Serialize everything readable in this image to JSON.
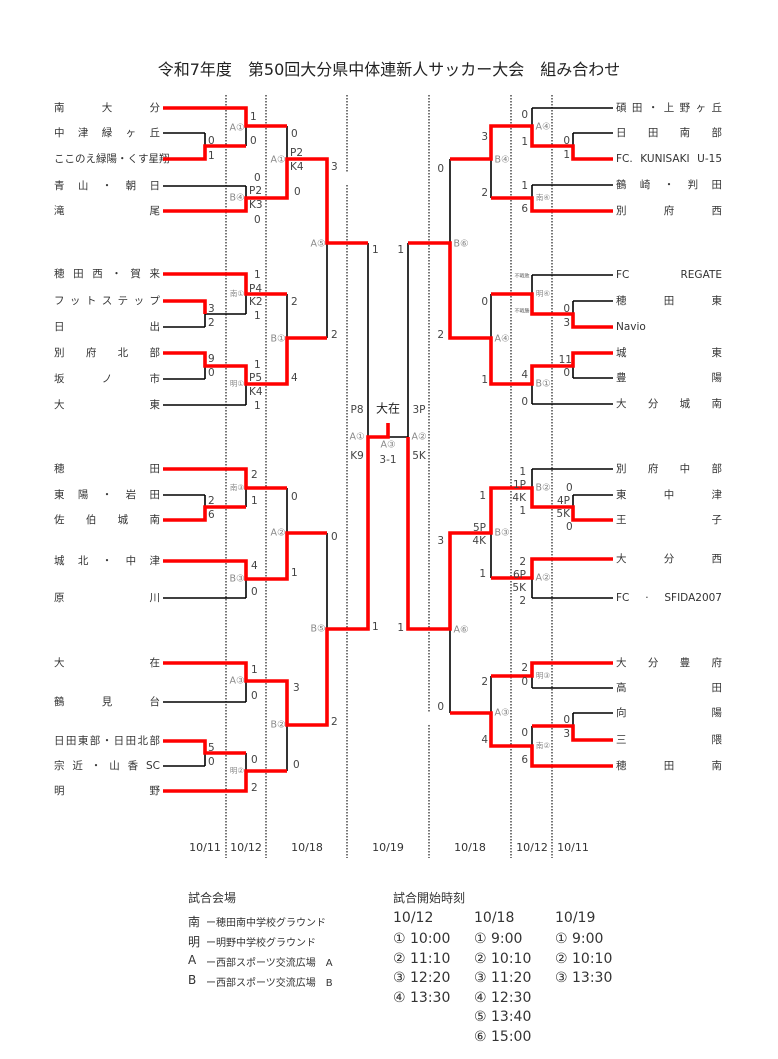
{
  "title": "令和7年度　第50回大分県中体連新人サッカー大会　組み合わせ",
  "left_teams": [
    "南大分",
    "中津緑ヶ丘",
    "ここのえ緑陽・くす星翔",
    "青山・朝日",
    "滝尾",
    "穂田西・賀来",
    "フットステップ",
    "日出",
    "別府北部",
    "坂ノ市",
    "大東",
    "穂田",
    "東陽・岩田",
    "佐伯城南",
    "城北・中津",
    "原川",
    "大在",
    "鶴見台",
    "日田東部・日田北部",
    "宗近・山香SC",
    "明野"
  ],
  "right_teams": [
    "碩田・上野ヶ丘",
    "日田南部",
    "FC. KUNISAKI U-15",
    "鶴崎・判田",
    "別府西",
    "FC REGATE",
    "穂田東",
    "Navio",
    "城東",
    "豊陽",
    "大分城南",
    "別府中部",
    "東中津",
    "王子",
    "大分西",
    "FC · SFIDA2007",
    "大分豊府",
    "高田",
    "向陽",
    "三隈",
    "穂田南"
  ],
  "left_labels": [
    "0",
    "1",
    "A①",
    "1",
    "0",
    "B④",
    "0",
    "P2",
    "K3",
    "0",
    "A①",
    "0",
    "P2",
    "K4",
    "0",
    "A⑤",
    "3",
    "2",
    "南①",
    "1",
    "P4",
    "K2",
    "1",
    "3",
    "2",
    "9",
    "0",
    "明①",
    "1",
    "P5",
    "K4",
    "1",
    "B①",
    "2",
    "4",
    "1",
    "P8",
    "A①",
    "K9",
    "南③",
    "2",
    "1",
    "2",
    "6",
    "B③",
    "4",
    "0",
    "A②",
    "0",
    "1",
    "B⑤",
    "0",
    "2",
    "A③",
    "1",
    "0",
    "5",
    "0",
    "明②",
    "0",
    "2",
    "B②",
    "3",
    "0",
    "1"
  ],
  "right_labels": [
    "0",
    "1",
    "A④",
    "0",
    "1",
    "南④",
    "1",
    "6",
    "B④",
    "3",
    "2",
    "B⑥",
    "0",
    "2",
    "1",
    "3P",
    "A②",
    "5K",
    "明④",
    "不戦敗",
    "不戦勝",
    "0",
    "3",
    "B①",
    "4",
    "0",
    "11",
    "0",
    "A④",
    "0",
    "1",
    "B②",
    "1",
    "1P",
    "4K",
    "1",
    "0",
    "4P",
    "5K",
    "0",
    "A②",
    "2",
    "6P",
    "5K",
    "2",
    "B③",
    "1",
    "5P",
    "4K",
    "1",
    "A⑥",
    "3",
    "0",
    "明③",
    "2",
    "0",
    "0",
    "3",
    "南②",
    "0",
    "6",
    "A③",
    "2",
    "4",
    "1"
  ],
  "final": {
    "champion": "大在",
    "venue": "A③",
    "score": "3-1"
  },
  "dates": [
    "10/11",
    "10/12",
    "10/18",
    "10/19",
    "10/18",
    "10/12",
    "10/11"
  ],
  "venues": {
    "heading": "試合会場",
    "items": [
      {
        "key": "南",
        "name": "ー穂田南中学校グラウンド"
      },
      {
        "key": "明",
        "name": "ー明野中学校グラウンド"
      },
      {
        "key": "A",
        "name": "ー西部スポーツ交流広場　A"
      },
      {
        "key": "B",
        "name": "ー西部スポーツ交流広場　B"
      }
    ]
  },
  "times": {
    "heading": "試合開始時刻",
    "columns": [
      {
        "date": "10/12",
        "slots": [
          "① 10:00",
          "② 11:10",
          "③ 12:20",
          "④ 13:30"
        ]
      },
      {
        "date": "10/18",
        "slots": [
          "① 9:00",
          "② 10:10",
          "③ 11:20",
          "④ 12:30",
          "⑤ 13:40",
          "⑥ 15:00"
        ]
      },
      {
        "date": "10/19",
        "slots": [
          "① 9:00",
          "② 10:10",
          "③ 13:30"
        ]
      }
    ]
  },
  "colors": {
    "winner_line": "#ff0000",
    "line": "#000000"
  }
}
